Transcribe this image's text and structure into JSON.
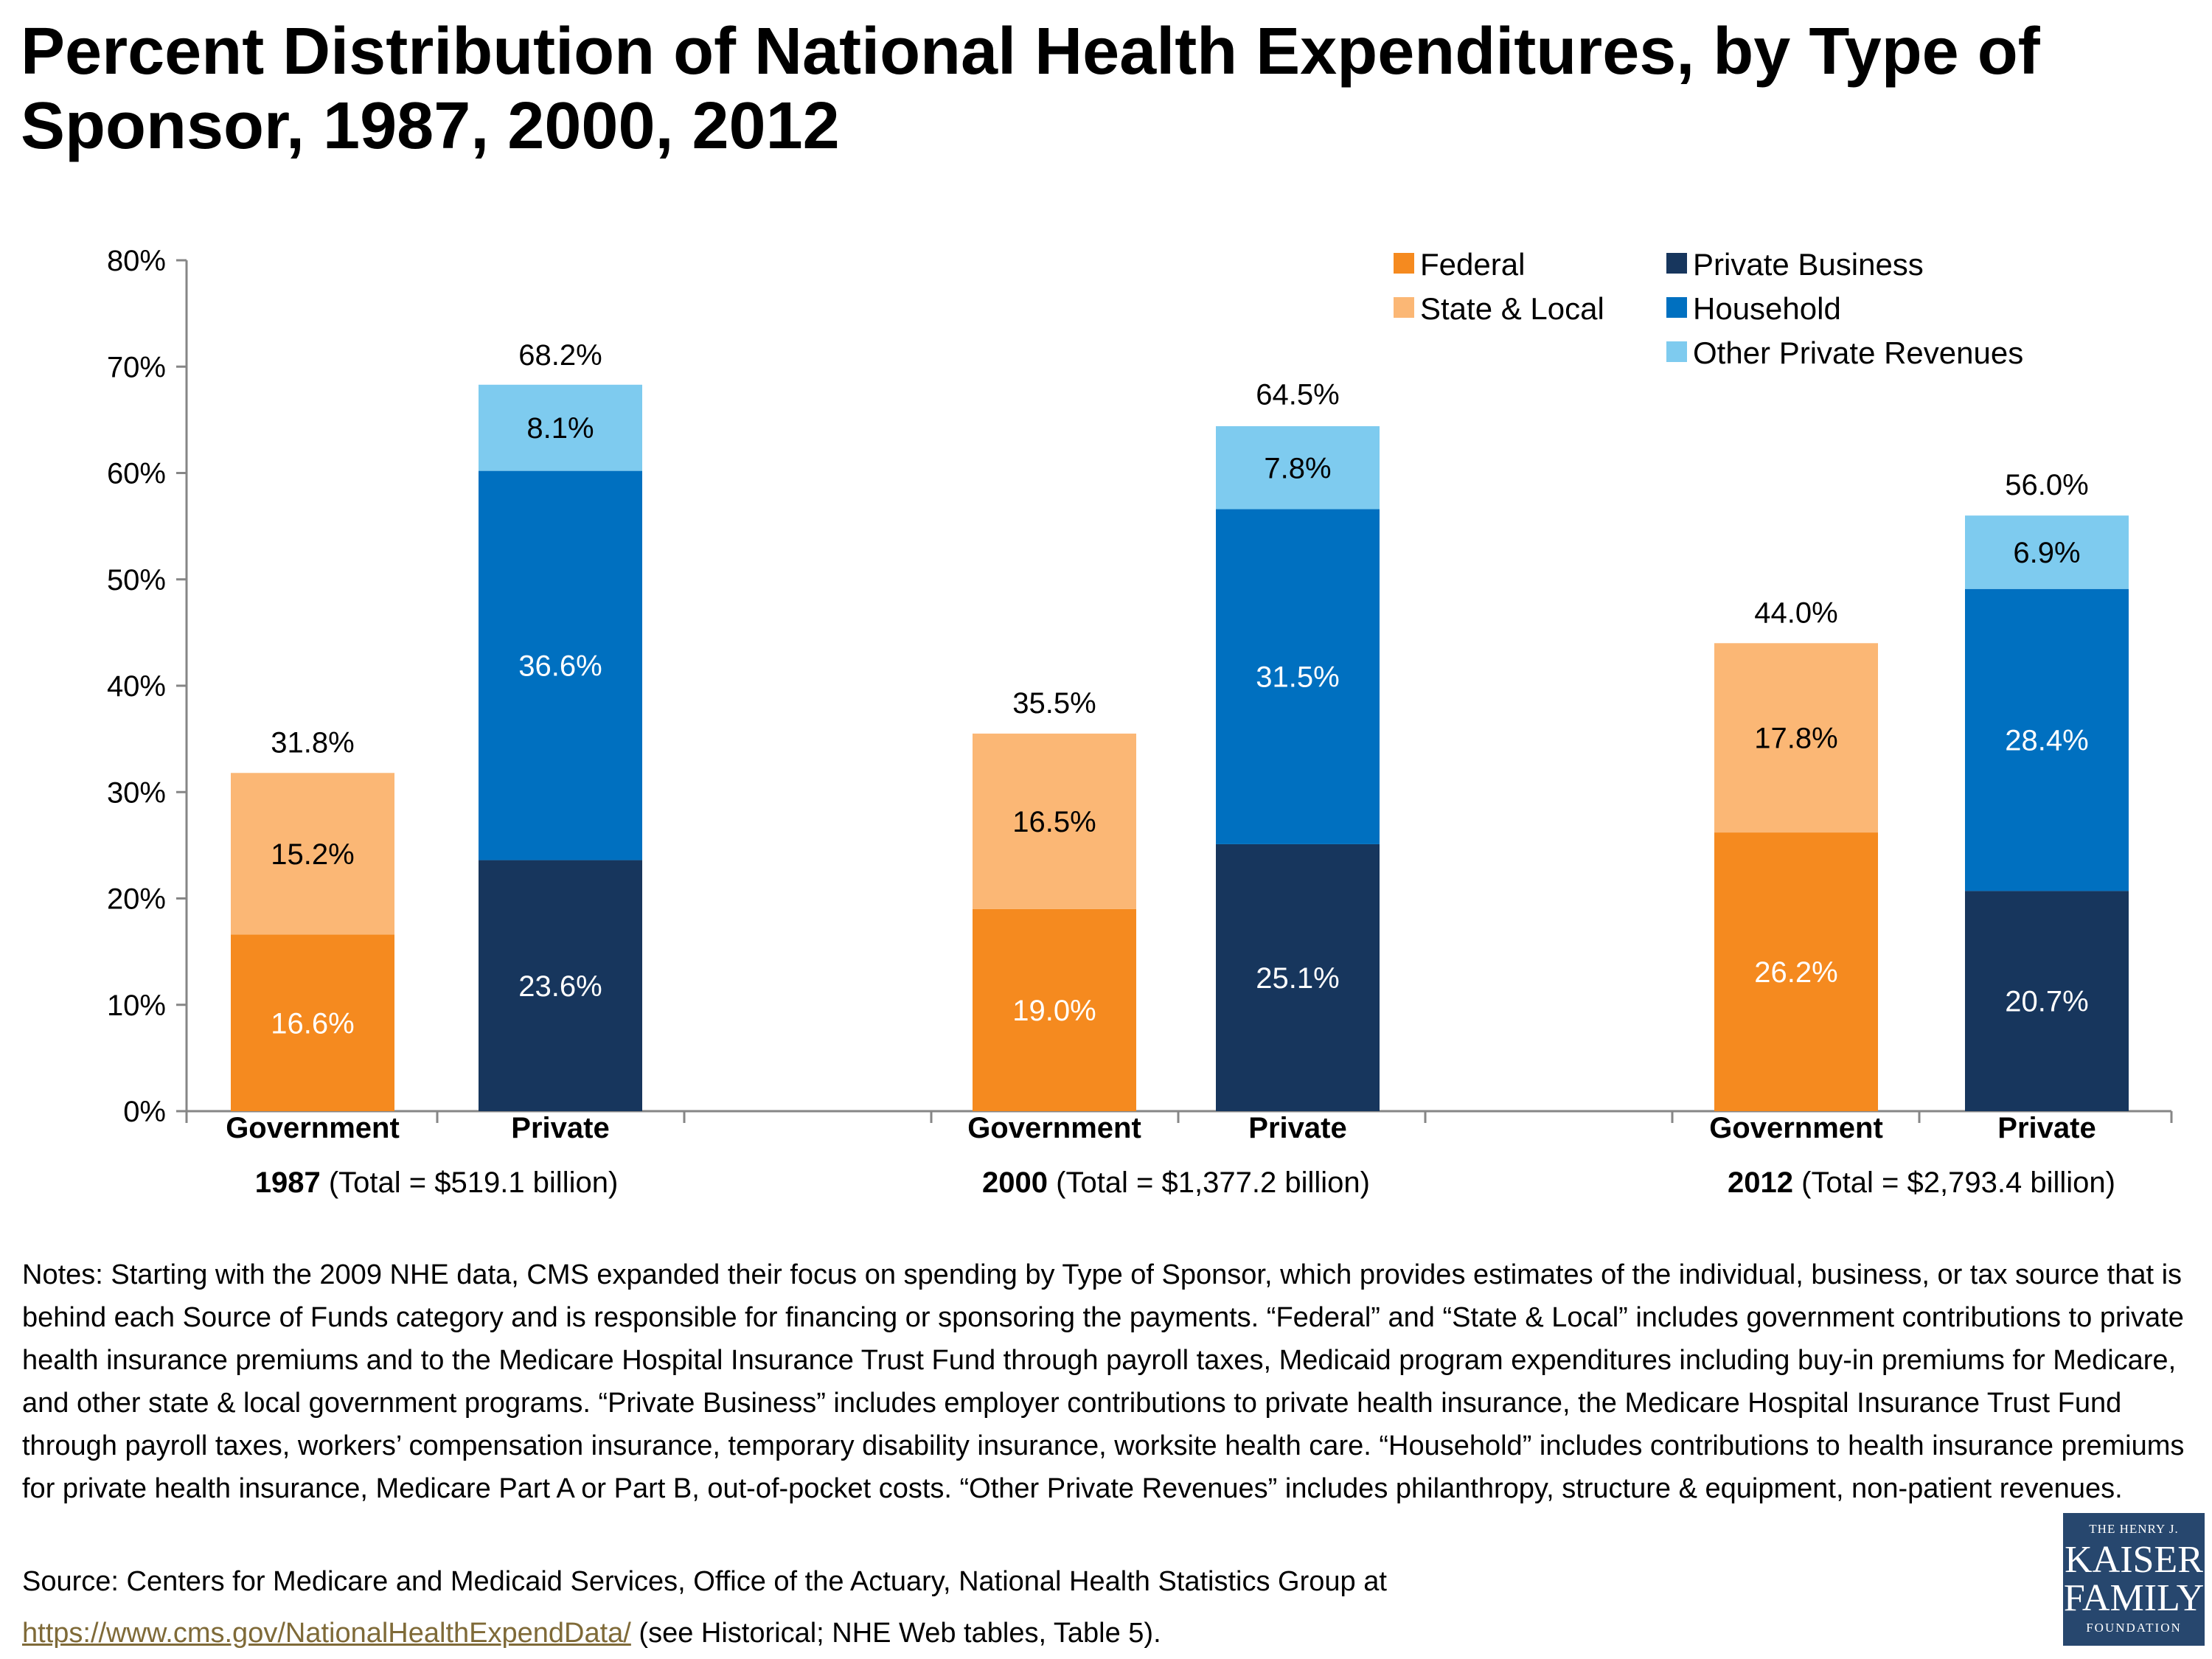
{
  "title": "Percent Distribution of National Health Expenditures, by Type of Sponsor, 1987, 2000, 2012",
  "chart_data": {
    "type": "bar",
    "stacked": true,
    "y_axis": {
      "min": 0,
      "max": 80,
      "step": 10,
      "unit": "%"
    },
    "y_ticks": [
      "0%",
      "10%",
      "20%",
      "30%",
      "40%",
      "50%",
      "60%",
      "70%",
      "80%"
    ],
    "grid": false,
    "legend": [
      {
        "name": "Federal",
        "color": "#f58a1f"
      },
      {
        "name": "Private Business",
        "color": "#17365d"
      },
      {
        "name": "State & Local",
        "color": "#fbb775"
      },
      {
        "name": "Household",
        "color": "#0070c0"
      },
      {
        "name": "Other Private Revenues",
        "color": "#7ecbef"
      }
    ],
    "legend_position": "top-right",
    "groups": [
      {
        "year": "1987",
        "total_text": " (Total = $519.1 billion)",
        "bars": [
          {
            "category": "Government",
            "total": 31.8,
            "total_label": "31.8%",
            "segments": [
              {
                "series": "Federal",
                "value": 16.6,
                "label": "16.6%"
              },
              {
                "series": "State & Local",
                "value": 15.2,
                "label": "15.2%"
              }
            ]
          },
          {
            "category": "Private",
            "total": 68.2,
            "total_label": "68.2%",
            "segments": [
              {
                "series": "Private Business",
                "value": 23.6,
                "label": "23.6%"
              },
              {
                "series": "Household",
                "value": 36.6,
                "label": "36.6%"
              },
              {
                "series": "Other Private Revenues",
                "value": 8.1,
                "label": "8.1%"
              }
            ]
          }
        ]
      },
      {
        "year": "2000",
        "total_text": " (Total = $1,377.2 billion)",
        "bars": [
          {
            "category": "Government",
            "total": 35.5,
            "total_label": "35.5%",
            "segments": [
              {
                "series": "Federal",
                "value": 19.0,
                "label": "19.0%"
              },
              {
                "series": "State & Local",
                "value": 16.5,
                "label": "16.5%"
              }
            ]
          },
          {
            "category": "Private",
            "total": 64.5,
            "total_label": "64.5%",
            "segments": [
              {
                "series": "Private Business",
                "value": 25.1,
                "label": "25.1%"
              },
              {
                "series": "Household",
                "value": 31.5,
                "label": "31.5%"
              },
              {
                "series": "Other Private Revenues",
                "value": 7.8,
                "label": "7.8%"
              }
            ]
          }
        ]
      },
      {
        "year": "2012",
        "total_text": " (Total = $2,793.4 billion)",
        "bars": [
          {
            "category": "Government",
            "total": 44.0,
            "total_label": "44.0%",
            "segments": [
              {
                "series": "Federal",
                "value": 26.2,
                "label": "26.2%"
              },
              {
                "series": "State & Local",
                "value": 17.8,
                "label": "17.8%"
              }
            ]
          },
          {
            "category": "Private",
            "total": 56.0,
            "total_label": "56.0%",
            "segments": [
              {
                "series": "Private Business",
                "value": 20.7,
                "label": "20.7%"
              },
              {
                "series": "Household",
                "value": 28.4,
                "label": "28.4%"
              },
              {
                "series": "Other Private Revenues",
                "value": 6.9,
                "label": "6.9%"
              }
            ]
          }
        ]
      }
    ]
  },
  "notes": "Notes:  Starting with the 2009 NHE data, CMS expanded their focus on spending by Type of Sponsor, which provides estimates of the individual, business, or tax source that is behind each Source of Funds category and is responsible for financing or sponsoring the payments. “Federal” and “State & Local” includes government contributions to private health insurance premiums and to the Medicare Hospital Insurance Trust Fund through payroll taxes, Medicaid program expenditures including buy-in premiums for Medicare, and other state & local government programs. “Private Business” includes employer contributions to private health insurance, the Medicare Hospital Insurance Trust Fund through payroll taxes, workers’ compensation insurance, temporary disability insurance, worksite health care. “Household” includes contributions to health insurance premiums for private health insurance, Medicare Part A or Part B, out-of-pocket costs. “Other Private Revenues” includes philanthropy, structure & equipment, non-patient revenues.",
  "source": {
    "line1": "Source: Centers for Medicare and Medicaid Services, Office of the Actuary, National Health Statistics Group at",
    "link": "https://www.cms.gov/NationalHealthExpendData/",
    "after_link": " (see Historical; NHE Web tables, Table 5)."
  },
  "logo": {
    "line1": "THE HENRY J.",
    "line2": "KAISER",
    "line3": "FAMILY",
    "line4": "FOUNDATION"
  }
}
